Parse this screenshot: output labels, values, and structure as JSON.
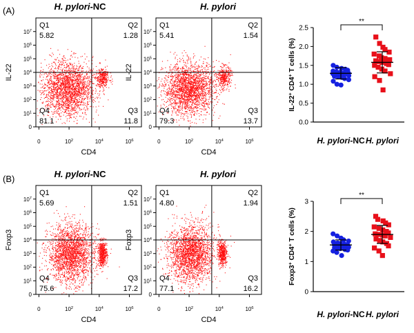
{
  "panel_labels": [
    "(A)",
    "(B)"
  ],
  "colors": {
    "flow_dot": "#ff1010",
    "nc_dot": "#1520e0",
    "hp_dot": "#e8101a",
    "axis": "#000000"
  },
  "chart_data": [
    {
      "type": "scatter",
      "subtype": "flow-cytometry",
      "panel": "A",
      "title": "H. pylori-NC",
      "title_parts": [
        "H. pylori",
        "-NC"
      ],
      "xlabel": "CD4",
      "ylabel": "IL-22",
      "x_ticks": [
        "0",
        "10^2",
        "10^4",
        "10^6"
      ],
      "y_ticks": [
        "0",
        "10^1",
        "10^2",
        "10^3",
        "10^4",
        "10^5",
        "10^6",
        "10^7"
      ],
      "quadrants": [
        {
          "name": "Q1",
          "value": "5.82"
        },
        {
          "name": "Q2",
          "value": "1.28"
        },
        {
          "name": "Q3",
          "value": "11.8"
        },
        {
          "name": "Q4",
          "value": "81.1"
        }
      ],
      "populations": [
        {
          "cx": 2.1,
          "cy": 2.8,
          "sx": 0.85,
          "sy": 0.95,
          "n": 2200
        },
        {
          "cx": 4.4,
          "cy": 3.6,
          "sx": 0.22,
          "sy": 0.35,
          "n": 320
        }
      ]
    },
    {
      "type": "scatter",
      "subtype": "flow-cytometry",
      "panel": "A",
      "title": "H. pylori",
      "title_parts": [
        "H. pylori",
        ""
      ],
      "xlabel": "CD4",
      "ylabel": "IL-22",
      "x_ticks": [
        "0",
        "10^2",
        "10^4",
        "10^6"
      ],
      "y_ticks": [
        "0",
        "10^1",
        "10^2",
        "10^3",
        "10^4",
        "10^5",
        "10^6",
        "10^7"
      ],
      "quadrants": [
        {
          "name": "Q1",
          "value": "5.41"
        },
        {
          "name": "Q2",
          "value": "1.54"
        },
        {
          "name": "Q3",
          "value": "13.7"
        },
        {
          "name": "Q4",
          "value": "79.3"
        }
      ],
      "populations": [
        {
          "cx": 2.2,
          "cy": 2.8,
          "sx": 0.85,
          "sy": 0.95,
          "n": 2200
        },
        {
          "cx": 4.5,
          "cy": 3.7,
          "sx": 0.22,
          "sy": 0.38,
          "n": 360
        }
      ]
    },
    {
      "type": "scatter",
      "subtype": "dot-plot",
      "panel": "A",
      "categories": [
        "H. pylori-NC",
        "H. pylori"
      ],
      "category_parts": [
        [
          "H. pylori",
          "-NC"
        ],
        [
          "H. pylori",
          ""
        ]
      ],
      "ylabel": "IL-22+ CD4+ T cells (%)",
      "ylabel_parts": [
        "IL-22",
        "+",
        " CD4",
        "+",
        " T cells (%)"
      ],
      "ylim": [
        0,
        2.5
      ],
      "y_ticks": [
        "0.0",
        "0.5",
        "1.0",
        "1.5",
        "2.0",
        "2.5"
      ],
      "significance": "**",
      "series": [
        {
          "name": "H. pylori-NC",
          "marker": "circle",
          "mean": 1.29,
          "sd": 0.15,
          "values": [
            1.5,
            1.45,
            1.42,
            1.4,
            1.37,
            1.35,
            1.33,
            1.32,
            1.3,
            1.29,
            1.28,
            1.27,
            1.26,
            1.25,
            1.23,
            1.21,
            1.2,
            1.18,
            1.15,
            1.12,
            1.08,
            1.0,
            0.98
          ]
        },
        {
          "name": "H. pylori",
          "marker": "square",
          "mean": 1.58,
          "sd": 0.28,
          "values": [
            2.25,
            2.08,
            1.98,
            1.92,
            1.85,
            1.8,
            1.75,
            1.7,
            1.68,
            1.65,
            1.62,
            1.6,
            1.58,
            1.55,
            1.52,
            1.5,
            1.45,
            1.4,
            1.35,
            1.28,
            1.2,
            1.1,
            0.85
          ]
        }
      ]
    },
    {
      "type": "scatter",
      "subtype": "flow-cytometry",
      "panel": "B",
      "title": "H. pylori-NC",
      "title_parts": [
        "H. pylori",
        "-NC"
      ],
      "xlabel": "CD4",
      "ylabel": "Foxp3",
      "x_ticks": [
        "0",
        "10^2",
        "10^4",
        "10^6"
      ],
      "y_ticks": [
        "0",
        "10^1",
        "10^2",
        "10^3",
        "10^4",
        "10^5",
        "10^6",
        "10^7"
      ],
      "quadrants": [
        {
          "name": "Q1",
          "value": "5.69"
        },
        {
          "name": "Q2",
          "value": "1.51"
        },
        {
          "name": "Q3",
          "value": "17.2"
        },
        {
          "name": "Q4",
          "value": "75.6"
        }
      ],
      "populations": [
        {
          "cx": 2.3,
          "cy": 3.0,
          "sx": 0.75,
          "sy": 1.05,
          "n": 2200
        },
        {
          "cx": 4.4,
          "cy": 3.0,
          "sx": 0.15,
          "sy": 0.45,
          "n": 500
        }
      ]
    },
    {
      "type": "scatter",
      "subtype": "flow-cytometry",
      "panel": "B",
      "title": "H. pylori",
      "title_parts": [
        "H. pylori",
        ""
      ],
      "xlabel": "CD4",
      "ylabel": "Foxp3",
      "x_ticks": [
        "0",
        "10^2",
        "10^4",
        "10^6"
      ],
      "y_ticks": [
        "0",
        "10^1",
        "10^2",
        "10^3",
        "10^4",
        "10^5",
        "10^6",
        "10^7"
      ],
      "quadrants": [
        {
          "name": "Q1",
          "value": "4.80"
        },
        {
          "name": "Q2",
          "value": "1.94"
        },
        {
          "name": "Q3",
          "value": "16.2"
        },
        {
          "name": "Q4",
          "value": "77.1"
        }
      ],
      "populations": [
        {
          "cx": 2.3,
          "cy": 3.0,
          "sx": 0.75,
          "sy": 1.05,
          "n": 2200
        },
        {
          "cx": 4.4,
          "cy": 3.0,
          "sx": 0.15,
          "sy": 0.45,
          "n": 480
        }
      ]
    },
    {
      "type": "scatter",
      "subtype": "dot-plot",
      "panel": "B",
      "categories": [
        "H. pylori-NC",
        "H. pylori"
      ],
      "category_parts": [
        [
          "H. pylori",
          "-NC"
        ],
        [
          "H. pylori",
          ""
        ]
      ],
      "ylabel": "Foxp3+ CD4+ T cells (%)",
      "ylabel_parts": [
        "Foxp3",
        "+",
        " CD4",
        "+",
        " T cells (%)"
      ],
      "ylim": [
        0,
        3
      ],
      "y_ticks": [
        "0",
        "1",
        "2",
        "3"
      ],
      "significance": "**",
      "series": [
        {
          "name": "H. pylori-NC",
          "marker": "circle",
          "mean": 1.55,
          "sd": 0.17,
          "values": [
            1.92,
            1.85,
            1.78,
            1.72,
            1.68,
            1.65,
            1.62,
            1.6,
            1.58,
            1.56,
            1.55,
            1.53,
            1.52,
            1.5,
            1.48,
            1.46,
            1.45,
            1.43,
            1.4,
            1.38,
            1.35,
            1.3,
            1.2
          ]
        },
        {
          "name": "H. pylori",
          "marker": "square",
          "mean": 1.9,
          "sd": 0.3,
          "values": [
            2.5,
            2.4,
            2.35,
            2.28,
            2.22,
            2.15,
            2.1,
            2.05,
            2.0,
            1.95,
            1.92,
            1.9,
            1.88,
            1.85,
            1.8,
            1.75,
            1.7,
            1.65,
            1.6,
            1.52,
            1.45,
            1.35,
            1.2
          ]
        }
      ]
    }
  ]
}
